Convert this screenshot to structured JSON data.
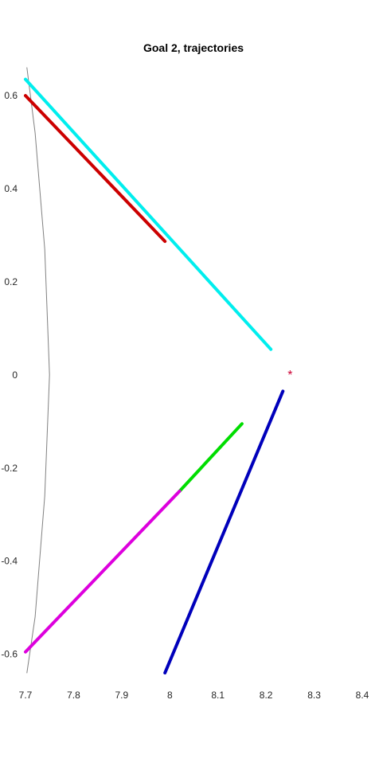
{
  "chart_data": {
    "type": "line",
    "title": "Goal 2, trajectories",
    "xlabel": "",
    "ylabel": "",
    "xlim": [
      7.7,
      8.4
    ],
    "ylim": [
      -0.64,
      0.66
    ],
    "xticks": [
      "7.7",
      "7.8",
      "7.9",
      "8",
      "8.1",
      "8.2",
      "8.3",
      "8.4"
    ],
    "yticks": [
      "-0.6",
      "-0.4",
      "-0.2",
      "0",
      "0.2",
      "0.4",
      "0.6"
    ],
    "grid": false,
    "legend": "none",
    "series": [
      {
        "color": "#808080",
        "width": 1,
        "x": [
          7.703,
          7.72,
          7.74,
          7.75,
          7.74,
          7.72,
          7.703
        ],
        "y": [
          0.66,
          0.52,
          0.27,
          0.0,
          -0.26,
          -0.52,
          -0.64
        ]
      },
      {
        "color": "#00eeee",
        "width": 4,
        "x": [
          7.7,
          8.21
        ],
        "y": [
          0.635,
          0.055
        ]
      },
      {
        "color": "#cc0000",
        "width": 4,
        "x": [
          7.7,
          7.99
        ],
        "y": [
          0.6,
          0.287
        ]
      },
      {
        "color": "#00dd00",
        "width": 4,
        "x": [
          8.02,
          8.15
        ],
        "y": [
          -0.25,
          -0.105
        ]
      },
      {
        "color": "#dd00dd",
        "width": 4,
        "x": [
          7.7,
          8.02
        ],
        "y": [
          -0.595,
          -0.25
        ]
      },
      {
        "color": "#0000bb",
        "width": 4,
        "x": [
          7.99,
          8.235
        ],
        "y": [
          -0.64,
          -0.035
        ]
      }
    ],
    "markers": [
      {
        "symbol": "*",
        "color": "#cc0033",
        "x": 8.25,
        "y": 0.005
      }
    ]
  }
}
